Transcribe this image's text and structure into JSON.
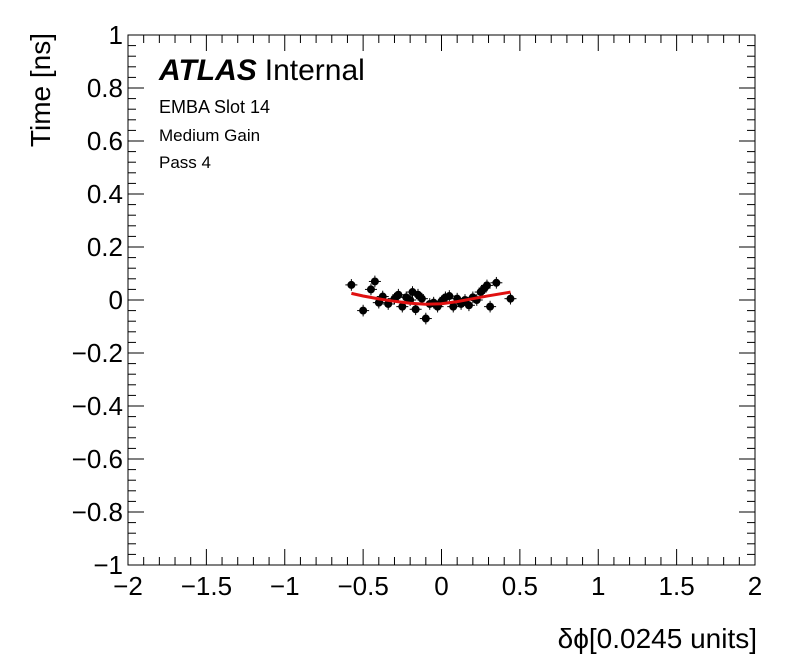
{
  "chart_data": {
    "type": "scatter",
    "xlabel": "δϕ[0.0245 units]",
    "ylabel": "Time [ns]",
    "xlim": [
      -2,
      2
    ],
    "ylim": [
      -1,
      1
    ],
    "xticks": [
      "−2",
      "−1.5",
      "−1",
      "−0.5",
      "0",
      "0.5",
      "1",
      "1.5",
      "2"
    ],
    "yticks": [
      "−1",
      "−0.8",
      "−0.6",
      "−0.4",
      "−0.2",
      "0",
      "0.2",
      "0.4",
      "0.6",
      "0.8",
      "1"
    ],
    "grid": false,
    "annotations": {
      "atlas": "ATLAS",
      "internal": "Internal",
      "line1": "EMBA Slot 14",
      "line2": "Medium Gain",
      "line3": "Pass 4"
    },
    "series": [
      {
        "kind": "points_with_errors",
        "color": "#000000",
        "points": [
          {
            "x": -0.575,
            "y": 0.057,
            "err": 0.022
          },
          {
            "x": -0.5,
            "y": -0.04,
            "err": 0.022
          },
          {
            "x": -0.45,
            "y": 0.04,
            "err": 0.022
          },
          {
            "x": -0.425,
            "y": 0.07,
            "err": 0.022
          },
          {
            "x": -0.4,
            "y": -0.01,
            "err": 0.022
          },
          {
            "x": -0.375,
            "y": 0.013,
            "err": 0.022
          },
          {
            "x": -0.34,
            "y": -0.015,
            "err": 0.022
          },
          {
            "x": -0.3,
            "y": 0.005,
            "err": 0.022
          },
          {
            "x": -0.275,
            "y": 0.02,
            "err": 0.022
          },
          {
            "x": -0.25,
            "y": -0.025,
            "err": 0.022
          },
          {
            "x": -0.225,
            "y": 0.01,
            "err": 0.022
          },
          {
            "x": -0.2,
            "y": 0.0,
            "err": 0.022
          },
          {
            "x": -0.185,
            "y": 0.03,
            "err": 0.022
          },
          {
            "x": -0.165,
            "y": -0.035,
            "err": 0.022
          },
          {
            "x": -0.15,
            "y": 0.02,
            "err": 0.022
          },
          {
            "x": -0.125,
            "y": 0.005,
            "err": 0.022
          },
          {
            "x": -0.1,
            "y": -0.07,
            "err": 0.022
          },
          {
            "x": -0.075,
            "y": -0.015,
            "err": 0.022
          },
          {
            "x": -0.05,
            "y": -0.01,
            "err": 0.022
          },
          {
            "x": -0.025,
            "y": -0.025,
            "err": 0.022
          },
          {
            "x": 0.0,
            "y": -0.005,
            "err": 0.022
          },
          {
            "x": 0.025,
            "y": 0.01,
            "err": 0.022
          },
          {
            "x": 0.05,
            "y": 0.015,
            "err": 0.022
          },
          {
            "x": 0.075,
            "y": -0.025,
            "err": 0.022
          },
          {
            "x": 0.1,
            "y": 0.005,
            "err": 0.022
          },
          {
            "x": 0.125,
            "y": -0.015,
            "err": 0.022
          },
          {
            "x": 0.15,
            "y": 0.0,
            "err": 0.022
          },
          {
            "x": 0.175,
            "y": -0.02,
            "err": 0.022
          },
          {
            "x": 0.2,
            "y": 0.01,
            "err": 0.022
          },
          {
            "x": 0.225,
            "y": 0.0,
            "err": 0.022
          },
          {
            "x": 0.25,
            "y": 0.03,
            "err": 0.022
          },
          {
            "x": 0.275,
            "y": 0.045,
            "err": 0.022
          },
          {
            "x": 0.29,
            "y": 0.055,
            "err": 0.022
          },
          {
            "x": 0.31,
            "y": -0.025,
            "err": 0.022
          },
          {
            "x": 0.35,
            "y": 0.065,
            "err": 0.022
          },
          {
            "x": 0.44,
            "y": 0.005,
            "err": 0.022
          }
        ]
      },
      {
        "kind": "fit_curve",
        "color": "#e01010",
        "x": [
          -0.575,
          -0.5,
          -0.4,
          -0.3,
          -0.2,
          -0.1,
          0.0,
          0.1,
          0.2,
          0.3,
          0.44
        ],
        "y": [
          0.025,
          0.015,
          0.004,
          -0.005,
          -0.012,
          -0.016,
          -0.014,
          -0.006,
          0.005,
          0.016,
          0.03
        ]
      }
    ]
  }
}
